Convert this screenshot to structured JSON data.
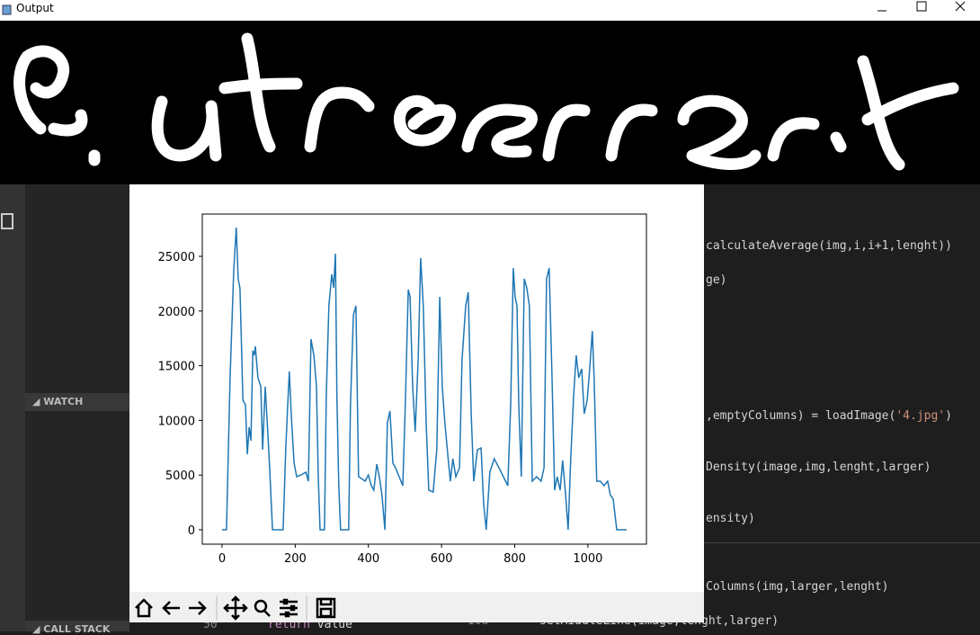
{
  "window": {
    "title": "Output"
  },
  "sidebar": {
    "watch": "WATCH",
    "call_stack": "CALL STACK"
  },
  "editor": {
    "lines": [
      [
        "calculateAverage(img,i,i+1,lenght))"
      ],
      [
        "ge)"
      ],
      [
        ",emptyColumns) = loadImage(",
        "'4.jpg'",
        ")"
      ],
      [
        "Density(image,img,lenght,larger)"
      ],
      [
        "ensity)"
      ],
      [
        "Columns(img,larger,lenght)"
      ],
      [
        "setMiddleLine(image,lenght,larger)"
      ]
    ],
    "left_line_number": "50",
    "left_code": [
      "return",
      "value"
    ],
    "right_line_number": "108"
  },
  "chart_data": {
    "type": "line",
    "x": [
      0,
      12,
      22,
      32,
      39,
      44,
      49,
      57,
      64,
      69,
      74,
      79,
      84,
      88,
      91,
      98,
      106,
      111,
      118,
      125,
      130,
      138,
      167,
      174,
      179,
      184,
      189,
      197,
      204,
      216,
      229,
      236,
      243,
      251,
      258,
      263,
      268,
      280,
      285,
      292,
      300,
      305,
      310,
      314,
      319,
      324,
      346,
      351,
      359,
      366,
      373,
      381,
      391,
      400,
      408,
      415,
      423,
      430,
      437,
      445,
      452,
      459,
      467,
      474,
      484,
      494,
      501,
      509,
      514,
      521,
      528,
      536,
      543,
      550,
      558,
      565,
      577,
      587,
      595,
      602,
      609,
      617,
      624,
      631,
      639,
      649,
      656,
      666,
      673,
      681,
      688,
      698,
      708,
      715,
      722,
      732,
      744,
      757,
      769,
      781,
      789,
      796,
      801,
      806,
      811,
      818,
      826,
      833,
      840,
      848,
      860,
      872,
      880,
      887,
      894,
      902,
      909,
      916,
      924,
      931,
      939,
      946,
      953,
      961,
      968,
      975,
      983,
      990,
      998,
      1005,
      1012,
      1017,
      1024,
      1034,
      1044,
      1054,
      1061,
      1069,
      1079,
      1106
    ],
    "series": [
      {
        "color": "#1f77b4",
        "values": [
          0,
          0,
          13900,
          23770,
          27630,
          22940,
          22100,
          11840,
          11430,
          6900,
          9380,
          8140,
          16370,
          15950,
          16780,
          13900,
          13080,
          7320,
          13080,
          8960,
          5670,
          0,
          0,
          7320,
          11020,
          14470,
          10610,
          6090,
          4850,
          5020,
          5260,
          4440,
          17430,
          15950,
          13080,
          4850,
          0,
          0,
          12250,
          20480,
          23360,
          22120,
          25250,
          12250,
          4030,
          0,
          0,
          11430,
          19650,
          20480,
          4850,
          4690,
          4440,
          5020,
          4030,
          3620,
          6000,
          4850,
          3210,
          0,
          9790,
          10860,
          6090,
          5670,
          4850,
          4030,
          11430,
          21960,
          21300,
          13080,
          8960,
          15540,
          24840,
          20480,
          9790,
          3620,
          3450,
          7320,
          21300,
          13080,
          9790,
          6900,
          4440,
          6500,
          4850,
          5670,
          15540,
          20480,
          21710,
          10610,
          4440,
          7320,
          7480,
          2380,
          0,
          5260,
          6500,
          5670,
          4850,
          4030,
          11430,
          23930,
          21300,
          20480,
          11430,
          4850,
          22940,
          22120,
          20480,
          4440,
          4850,
          4440,
          5670,
          22940,
          23930,
          13900,
          3620,
          4850,
          3620,
          6330,
          3210,
          0,
          6500,
          12250,
          15950,
          13900,
          14720,
          10610,
          11840,
          14720,
          18170,
          13900,
          4440,
          4440,
          4030,
          4440,
          3210,
          2800,
          0,
          0
        ]
      }
    ],
    "xlim": [
      -54,
      1160
    ],
    "ylim": [
      -1316,
      28865
    ],
    "xticks": [
      0,
      200,
      400,
      600,
      800,
      1000
    ],
    "yticks": [
      0,
      5000,
      10000,
      15000,
      20000,
      25000
    ]
  }
}
